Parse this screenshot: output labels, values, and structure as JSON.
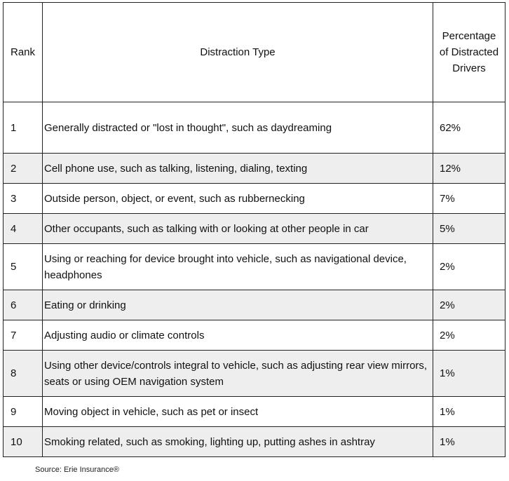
{
  "table": {
    "header": [
      "Rank",
      "Distraction Type",
      "Percentage of Distracted Drivers"
    ],
    "rows": [
      [
        "1",
        "Generally distracted or \"lost in thought\", such as daydreaming",
        "62%"
      ],
      [
        "2",
        "Cell phone use, such as talking, listening, dialing, texting",
        "12%"
      ],
      [
        "3",
        "Outside person, object, or event, such as rubbernecking",
        "7%"
      ],
      [
        "4",
        "Other occupants, such as talking with or looking at other people in car",
        "5%"
      ],
      [
        "5",
        "Using or reaching for device brought into vehicle, such as navigational device, headphones",
        "2%"
      ],
      [
        "6",
        "Eating or drinking",
        "2%"
      ],
      [
        "7",
        "Adjusting audio or climate controls",
        "2%"
      ],
      [
        "8",
        "Using other device/controls integral to vehicle, such as adjusting rear view mirrors, seats or using OEM navigation system",
        "1%"
      ],
      [
        "9",
        "Moving object in vehicle, such as pet or insect",
        "1%"
      ],
      [
        "10",
        "Smoking related, such as smoking, lighting up, putting ashes in ashtray",
        "1%"
      ]
    ]
  },
  "source": "Source: Erie Insurance®"
}
